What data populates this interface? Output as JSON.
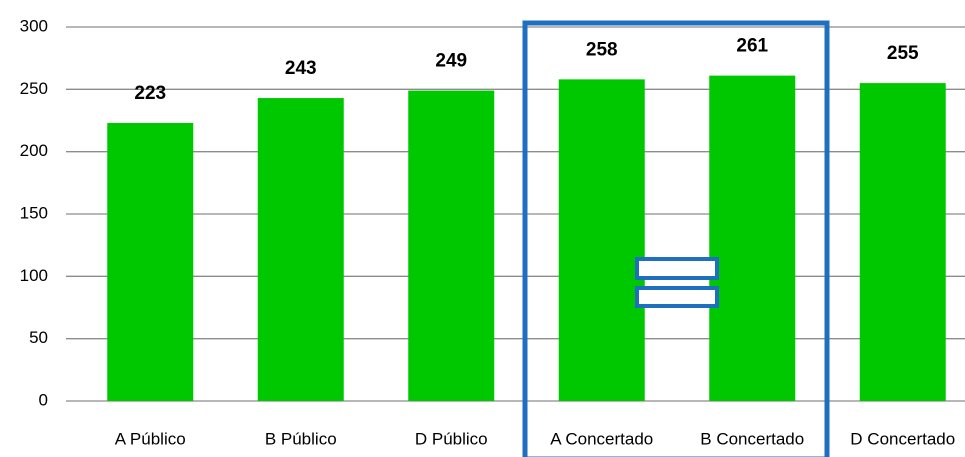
{
  "chart_data": {
    "type": "bar",
    "categories": [
      "A Público",
      "B Público",
      "D Público",
      "A Concertado",
      "B Concertado",
      "D Concertado"
    ],
    "values": [
      223,
      243,
      249,
      258,
      261,
      255
    ],
    "color": "#00c800",
    "ylim": [
      0,
      300
    ],
    "yticks": [
      0,
      50,
      100,
      150,
      200,
      250,
      300
    ],
    "grid": true
  }
}
